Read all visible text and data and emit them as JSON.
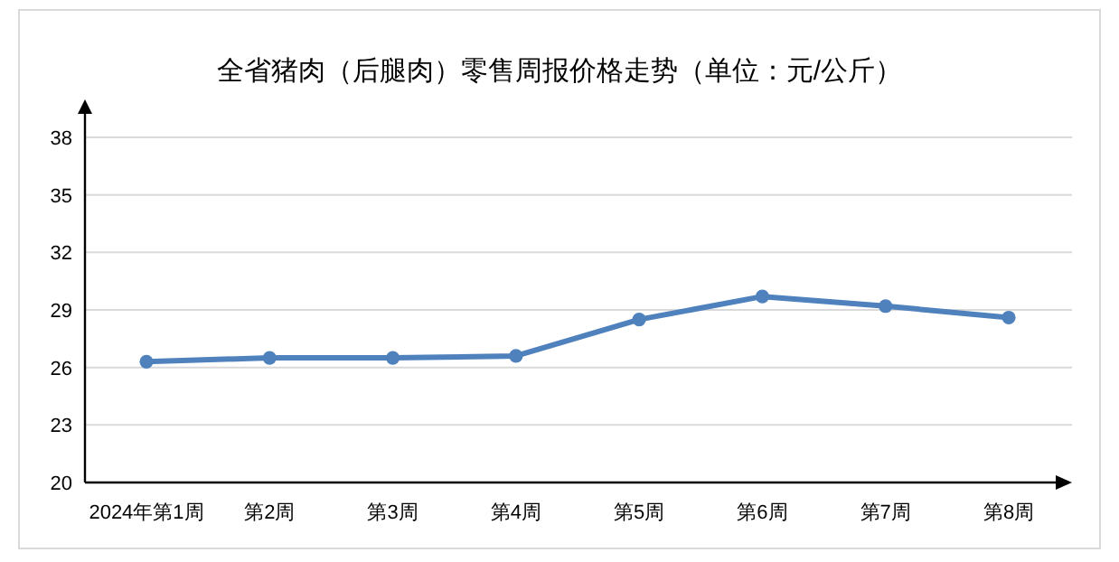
{
  "chart_data": {
    "type": "line",
    "title": "全省猪肉（后腿肉）零售周报价格走势（单位：元/公斤）",
    "categories": [
      "2024年第1周",
      "第2周",
      "第3周",
      "第4周",
      "第5周",
      "第6周",
      "第7周",
      "第8周"
    ],
    "series": [
      {
        "color": "#4f81bd",
        "values": [
          26.3,
          26.5,
          26.5,
          26.6,
          28.5,
          29.7,
          29.2,
          28.6
        ]
      }
    ],
    "ylim": [
      20,
      38
    ],
    "yticks": [
      20,
      23,
      26,
      29,
      32,
      35,
      38
    ],
    "grid": "y",
    "marker": "circle",
    "line_style": "solid"
  }
}
